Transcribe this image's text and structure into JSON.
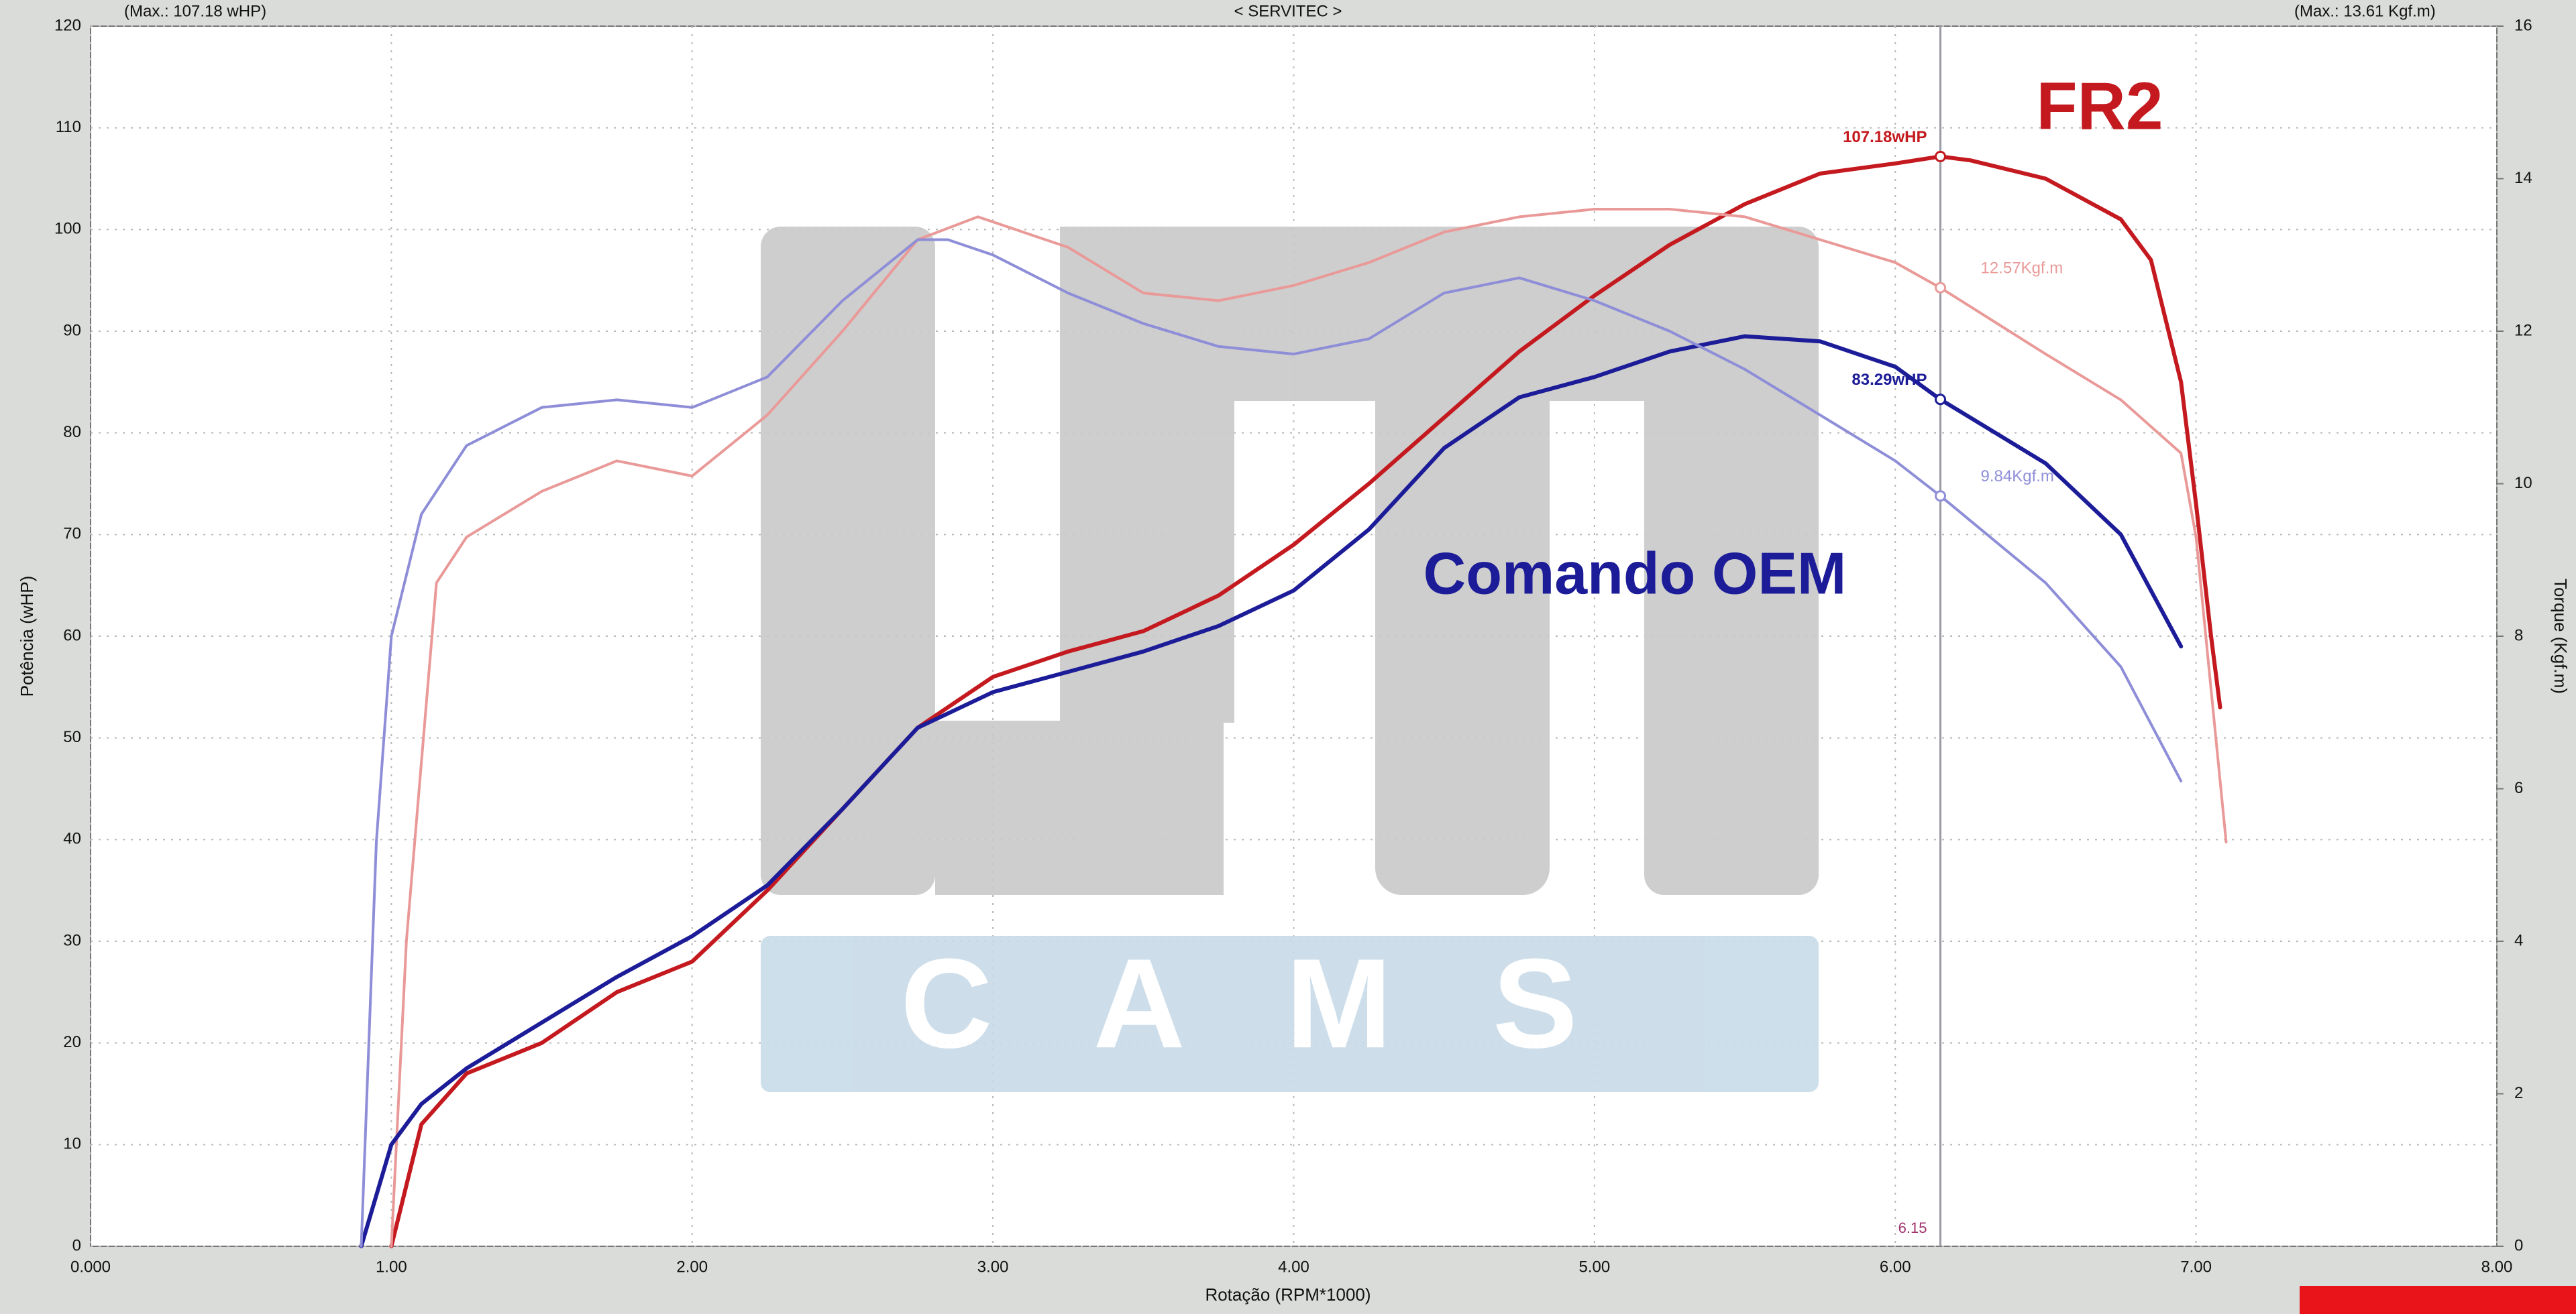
{
  "chart_data": {
    "type": "line",
    "title": "< SERVITEC >",
    "header_left": "(Max.: 107.18 wHP)",
    "header_right": "(Max.: 13.61 Kgf.m)",
    "x_label": "Rotação (RPM*1000)",
    "y_label": "Potência (wHP)",
    "y2_label": "Torque (Kgf.m)",
    "watermark": "CAMS",
    "xlim": [
      0,
      8
    ],
    "xticks": [
      {
        "value": 0,
        "label": "0.000"
      },
      {
        "value": 1,
        "label": "1.00"
      },
      {
        "value": 2,
        "label": "2.00"
      },
      {
        "value": 3,
        "label": "3.00"
      },
      {
        "value": 4,
        "label": "4.00"
      },
      {
        "value": 5,
        "label": "5.00"
      },
      {
        "value": 6,
        "label": "6.00"
      },
      {
        "value": 7,
        "label": "7.00"
      },
      {
        "value": 8,
        "label": "8.00"
      }
    ],
    "ylim": [
      0,
      120
    ],
    "yticks": [
      0,
      10,
      20,
      30,
      40,
      50,
      60,
      70,
      80,
      90,
      100,
      110,
      120
    ],
    "y2lim": [
      0,
      16
    ],
    "y2ticks": [
      0,
      2,
      4,
      6,
      8,
      10,
      12,
      14,
      16
    ],
    "grid": true,
    "cursor_x": 6.15,
    "series": [
      {
        "name": "FR2",
        "color": "#c41a1f",
        "axis": "y",
        "width": 6,
        "x": [
          1.0,
          1.1,
          1.25,
          1.5,
          1.75,
          2.0,
          2.25,
          2.5,
          2.75,
          3.0,
          3.25,
          3.5,
          3.75,
          4.0,
          4.25,
          4.5,
          4.75,
          5.0,
          5.25,
          5.5,
          5.75,
          6.0,
          6.15,
          6.25,
          6.5,
          6.75,
          6.85,
          6.95,
          7.0,
          7.05,
          7.08
        ],
        "values": [
          0,
          12,
          17,
          20,
          25,
          28,
          35,
          43,
          51,
          56,
          58.5,
          60.5,
          64,
          69,
          75,
          81.5,
          88,
          93.5,
          98.5,
          102.5,
          105.5,
          106.5,
          107.18,
          106.8,
          105,
          101,
          97,
          85,
          73,
          60,
          53
        ],
        "cursor_value": 107.18,
        "cursor_label": "107.18wHP"
      },
      {
        "color": "#e99a98",
        "axis": "y2",
        "width": 4,
        "x": [
          1.0,
          1.05,
          1.15,
          1.25,
          1.5,
          1.75,
          2.0,
          2.25,
          2.5,
          2.75,
          2.95,
          3.25,
          3.5,
          3.75,
          4.0,
          4.25,
          4.5,
          4.75,
          5.0,
          5.25,
          5.5,
          5.75,
          6.0,
          6.15,
          6.5,
          6.75,
          6.95,
          7.0,
          7.05,
          7.1
        ],
        "values": [
          0,
          4.0,
          8.7,
          9.3,
          9.9,
          10.3,
          10.1,
          10.9,
          12.0,
          13.2,
          13.5,
          13.1,
          12.5,
          12.4,
          12.6,
          12.9,
          13.3,
          13.5,
          13.6,
          13.6,
          13.5,
          13.2,
          12.9,
          12.57,
          11.7,
          11.1,
          10.4,
          9.3,
          7.3,
          5.3
        ],
        "cursor_value": 12.57,
        "cursor_label": "12.57Kgf.m"
      },
      {
        "name": "Comando OEM",
        "color": "#1c1c98",
        "axis": "y",
        "width": 6,
        "x": [
          0.9,
          1.0,
          1.1,
          1.25,
          1.5,
          1.75,
          2.0,
          2.25,
          2.5,
          2.75,
          3.0,
          3.25,
          3.5,
          3.75,
          4.0,
          4.25,
          4.5,
          4.75,
          5.0,
          5.25,
          5.5,
          5.75,
          6.0,
          6.15,
          6.5,
          6.75,
          6.95
        ],
        "values": [
          0,
          10,
          14,
          17.5,
          22,
          26.5,
          30.5,
          35.5,
          43,
          51,
          54.5,
          56.5,
          58.5,
          61,
          64.5,
          70.5,
          78.5,
          83.5,
          85.5,
          88,
          89.5,
          89,
          86.5,
          83.29,
          77,
          70,
          59
        ],
        "cursor_value": 83.29,
        "cursor_label": "83.29wHP"
      },
      {
        "color": "#8e8ed8",
        "axis": "y2",
        "width": 4,
        "x": [
          0.9,
          0.95,
          1.0,
          1.1,
          1.25,
          1.5,
          1.75,
          2.0,
          2.25,
          2.5,
          2.75,
          2.85,
          3.0,
          3.25,
          3.5,
          3.75,
          4.0,
          4.25,
          4.5,
          4.75,
          5.0,
          5.25,
          5.5,
          5.75,
          6.0,
          6.15,
          6.5,
          6.75,
          6.95
        ],
        "values": [
          0,
          5.3,
          8.0,
          9.6,
          10.5,
          11.0,
          11.1,
          11.0,
          11.4,
          12.4,
          13.2,
          13.2,
          13.0,
          12.5,
          12.1,
          11.8,
          11.7,
          11.9,
          12.5,
          12.7,
          12.4,
          12.0,
          11.5,
          10.9,
          10.3,
          9.84,
          8.7,
          7.6,
          6.1
        ],
        "cursor_value": 9.84,
        "cursor_label": "9.84Kgf.m"
      }
    ]
  }
}
